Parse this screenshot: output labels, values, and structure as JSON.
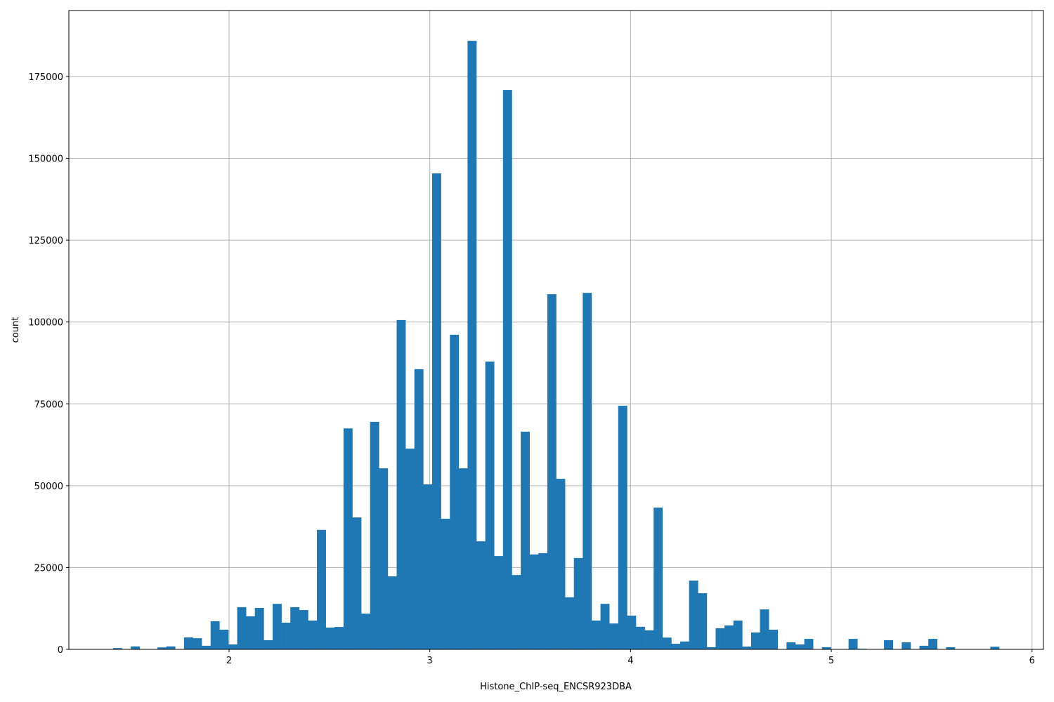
{
  "chart_data": {
    "type": "bar",
    "subtype": "histogram",
    "title": "",
    "xlabel": "Histone_ChIP-seq_ENCSR923DBA",
    "ylabel": "count",
    "xlim": [
      1.202,
      6.057
    ],
    "ylim": [
      0,
      195150
    ],
    "x_ticks": [
      2,
      3,
      4,
      5,
      6
    ],
    "x_tick_labels": [
      "2",
      "3",
      "4",
      "5",
      "6"
    ],
    "y_ticks": [
      0,
      25000,
      50000,
      75000,
      100000,
      125000,
      150000,
      175000
    ],
    "y_tick_labels": [
      "0",
      "25000",
      "50000",
      "75000",
      "100000",
      "125000",
      "150000",
      "175000"
    ],
    "grid": true,
    "bar_color": "#1f77b4",
    "grid_color": "#b0b0b0",
    "bins": 100,
    "bin_start": 1.4225,
    "bin_width": 0.04414,
    "counts": [
      400,
      0,
      900,
      0,
      0,
      600,
      900,
      0,
      3650,
      3400,
      1100,
      8600,
      6000,
      1500,
      12900,
      10100,
      12650,
      2800,
      13900,
      8150,
      12900,
      12000,
      8800,
      36500,
      6650,
      6850,
      67500,
      40300,
      10900,
      69500,
      55300,
      22300,
      100600,
      61300,
      85600,
      50400,
      145400,
      39900,
      96100,
      55300,
      185900,
      33000,
      87900,
      28500,
      170900,
      22700,
      66500,
      29000,
      29400,
      108500,
      52100,
      15900,
      27900,
      108900,
      8800,
      13900,
      7900,
      74400,
      10300,
      6900,
      5800,
      43300,
      3600,
      1700,
      2400,
      21000,
      17150,
      650,
      6450,
      7300,
      8800,
      850,
      5150,
      12200,
      6000,
      0,
      2150,
      1500,
      3200,
      0,
      650,
      0,
      0,
      3200,
      200,
      0,
      0,
      2800,
      0,
      2150,
      0,
      1100,
      3200,
      0,
      650,
      0,
      0,
      0,
      0,
      800
    ]
  }
}
